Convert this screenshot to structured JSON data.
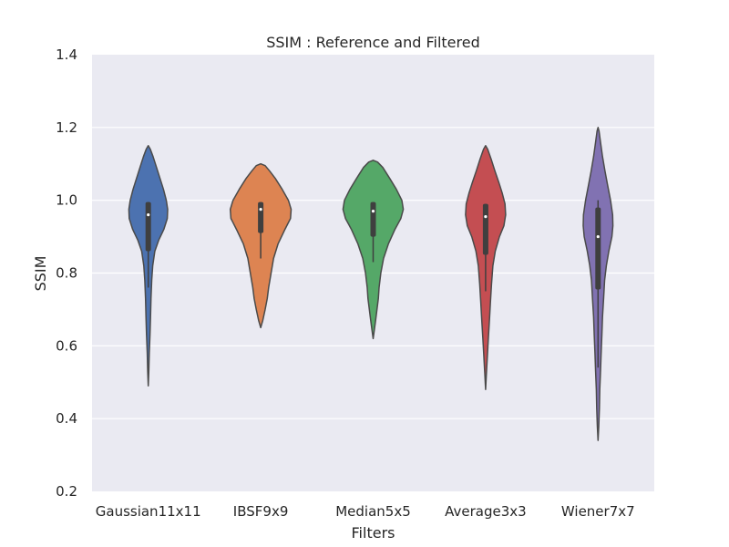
{
  "chart_data": {
    "type": "violin",
    "title": "SSIM :  Reference and Filtered",
    "xlabel": "Filters",
    "ylabel": "SSIM",
    "ylim": [
      0.2,
      1.4
    ],
    "yticks": [
      "0.2",
      "0.4",
      "0.6",
      "0.8",
      "1.0",
      "1.2",
      "1.4"
    ],
    "grid": true,
    "background": "#eaeaf2",
    "categories": [
      "Gaussian11x11",
      "IBSF9x9",
      "Median5x5",
      "Average3x3",
      "Wiener7x7"
    ],
    "colors": [
      "#4c72b0",
      "#dd8452",
      "#55a868",
      "#c44e52",
      "#8172b2"
    ],
    "violins": [
      {
        "category": "Gaussian11x11",
        "min": 0.49,
        "max": 1.15,
        "q1": 0.86,
        "median": 0.96,
        "q3": 0.995,
        "whisker_low": 0.76,
        "whisker_high": 0.995,
        "profile": [
          [
            0.49,
            0.0
          ],
          [
            0.53,
            0.015
          ],
          [
            0.58,
            0.03
          ],
          [
            0.63,
            0.05
          ],
          [
            0.68,
            0.065
          ],
          [
            0.73,
            0.08
          ],
          [
            0.78,
            0.1
          ],
          [
            0.82,
            0.13
          ],
          [
            0.86,
            0.19
          ],
          [
            0.89,
            0.3
          ],
          [
            0.92,
            0.45
          ],
          [
            0.95,
            0.55
          ],
          [
            0.975,
            0.56
          ],
          [
            1.0,
            0.52
          ],
          [
            1.03,
            0.44
          ],
          [
            1.06,
            0.34
          ],
          [
            1.09,
            0.24
          ],
          [
            1.12,
            0.14
          ],
          [
            1.14,
            0.06
          ],
          [
            1.15,
            0.0
          ]
        ]
      },
      {
        "category": "IBSF9x9",
        "min": 0.65,
        "max": 1.1,
        "q1": 0.91,
        "median": 0.975,
        "q3": 0.995,
        "whisker_low": 0.84,
        "whisker_high": 0.995,
        "profile": [
          [
            0.65,
            0.0
          ],
          [
            0.67,
            0.06
          ],
          [
            0.7,
            0.13
          ],
          [
            0.73,
            0.19
          ],
          [
            0.76,
            0.23
          ],
          [
            0.8,
            0.3
          ],
          [
            0.84,
            0.37
          ],
          [
            0.88,
            0.5
          ],
          [
            0.92,
            0.7
          ],
          [
            0.95,
            0.86
          ],
          [
            0.975,
            0.88
          ],
          [
            1.0,
            0.8
          ],
          [
            1.03,
            0.62
          ],
          [
            1.06,
            0.42
          ],
          [
            1.08,
            0.26
          ],
          [
            1.095,
            0.13
          ],
          [
            1.1,
            0.0
          ]
        ]
      },
      {
        "category": "Median5x5",
        "min": 0.62,
        "max": 1.11,
        "q1": 0.9,
        "median": 0.97,
        "q3": 0.995,
        "whisker_low": 0.83,
        "whisker_high": 0.995,
        "profile": [
          [
            0.62,
            0.0
          ],
          [
            0.64,
            0.03
          ],
          [
            0.67,
            0.07
          ],
          [
            0.7,
            0.11
          ],
          [
            0.73,
            0.15
          ],
          [
            0.76,
            0.17
          ],
          [
            0.8,
            0.22
          ],
          [
            0.84,
            0.3
          ],
          [
            0.88,
            0.44
          ],
          [
            0.92,
            0.63
          ],
          [
            0.95,
            0.8
          ],
          [
            0.975,
            0.87
          ],
          [
            1.0,
            0.83
          ],
          [
            1.03,
            0.67
          ],
          [
            1.06,
            0.48
          ],
          [
            1.09,
            0.28
          ],
          [
            1.105,
            0.13
          ],
          [
            1.11,
            0.0
          ]
        ]
      },
      {
        "category": "Average3x3",
        "min": 0.48,
        "max": 1.15,
        "q1": 0.85,
        "median": 0.955,
        "q3": 0.99,
        "whisker_low": 0.75,
        "whisker_high": 0.99,
        "profile": [
          [
            0.48,
            0.0
          ],
          [
            0.52,
            0.02
          ],
          [
            0.57,
            0.05
          ],
          [
            0.62,
            0.08
          ],
          [
            0.67,
            0.11
          ],
          [
            0.72,
            0.14
          ],
          [
            0.77,
            0.17
          ],
          [
            0.82,
            0.21
          ],
          [
            0.86,
            0.28
          ],
          [
            0.9,
            0.4
          ],
          [
            0.93,
            0.53
          ],
          [
            0.96,
            0.58
          ],
          [
            0.99,
            0.56
          ],
          [
            1.02,
            0.48
          ],
          [
            1.05,
            0.38
          ],
          [
            1.08,
            0.27
          ],
          [
            1.11,
            0.17
          ],
          [
            1.14,
            0.06
          ],
          [
            1.15,
            0.0
          ]
        ]
      },
      {
        "category": "Wiener7x7",
        "min": 0.34,
        "max": 1.2,
        "q1": 0.755,
        "median": 0.9,
        "q3": 0.98,
        "whisker_low": 0.54,
        "whisker_high": 1.0,
        "profile": [
          [
            0.34,
            0.0
          ],
          [
            0.38,
            0.02
          ],
          [
            0.43,
            0.04
          ],
          [
            0.48,
            0.05
          ],
          [
            0.53,
            0.07
          ],
          [
            0.58,
            0.09
          ],
          [
            0.63,
            0.11
          ],
          [
            0.68,
            0.13
          ],
          [
            0.73,
            0.16
          ],
          [
            0.78,
            0.19
          ],
          [
            0.82,
            0.24
          ],
          [
            0.86,
            0.31
          ],
          [
            0.9,
            0.4
          ],
          [
            0.93,
            0.43
          ],
          [
            0.96,
            0.42
          ],
          [
            1.0,
            0.36
          ],
          [
            1.04,
            0.28
          ],
          [
            1.08,
            0.2
          ],
          [
            1.12,
            0.13
          ],
          [
            1.16,
            0.07
          ],
          [
            1.19,
            0.03
          ],
          [
            1.2,
            0.0
          ]
        ]
      }
    ]
  }
}
